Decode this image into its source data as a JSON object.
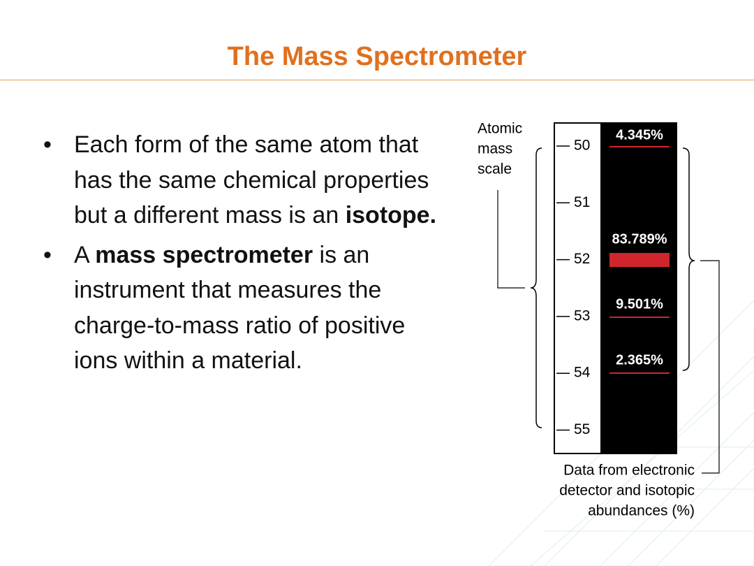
{
  "title": "The Mass Spectrometer",
  "bullets": [
    {
      "runs": [
        {
          "text": "Each form of the same atom that has the same chemical properties but a different mass is an ",
          "bold": false
        },
        {
          "text": "isotope.",
          "bold": true
        }
      ]
    },
    {
      "runs": [
        {
          "text": "A ",
          "bold": false
        },
        {
          "text": "mass spectrometer",
          "bold": true
        },
        {
          "text": " is an instrument that measures the charge-to-mass ratio of positive ions within a material.",
          "bold": false
        }
      ]
    }
  ],
  "diagram": {
    "scale_label": [
      "Atomic",
      "mass",
      "scale"
    ],
    "masses": [
      "50",
      "51",
      "52",
      "53",
      "54",
      "55"
    ],
    "abundances": [
      "4.345%",
      "83.789%",
      "9.501%",
      "2.365%"
    ],
    "caption": [
      "Data from electronic",
      "detector and isotopic",
      "abundances (%)"
    ]
  }
}
